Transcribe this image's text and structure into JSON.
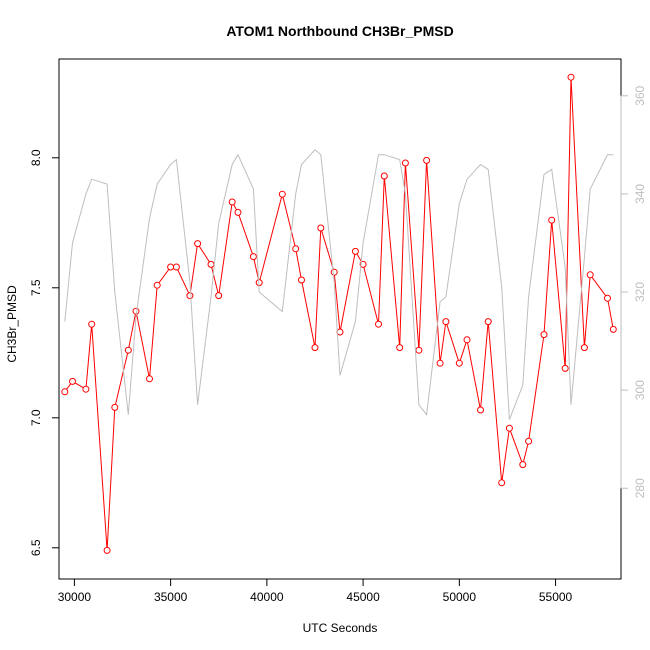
{
  "chart_data": {
    "type": "line",
    "title": "ATOM1 Northbound CH3Br_PMSD",
    "xlabel": "UTC Seconds",
    "ylabel": "CH3Br_PMSD",
    "xlim": [
      29200,
      58400
    ],
    "ylim": [
      6.38,
      8.38
    ],
    "y2lim": [
      261.5,
      367.5
    ],
    "x_ticks": [
      30000,
      35000,
      40000,
      45000,
      50000,
      55000
    ],
    "y_ticks": [
      6.5,
      7.0,
      7.5,
      8.0
    ],
    "y2_ticks": [
      280,
      300,
      320,
      340,
      360
    ],
    "x_tick_labels": [
      "30000",
      "35000",
      "40000",
      "45000",
      "50000",
      "55000"
    ],
    "y_tick_labels": [
      "6.5",
      "7.0",
      "7.5",
      "8.0"
    ],
    "y2_tick_labels": [
      "280",
      "300",
      "320",
      "340",
      "360"
    ],
    "grid": false,
    "colors": {
      "primary": "#ff0000",
      "secondary": "#bebebe",
      "frame": "#000000"
    },
    "series": [
      {
        "axis": "left",
        "style": "points-and-lines",
        "x": [
          29500,
          29900,
          30600,
          30900,
          31700,
          32100,
          32800,
          33200,
          33900,
          34300,
          35000,
          35300,
          36000,
          36400,
          37100,
          37500,
          38200,
          38500,
          39300,
          39600,
          40800,
          41500,
          41800,
          42500,
          42800,
          43500,
          43800,
          44600,
          45000,
          45800,
          46100,
          46900,
          47200,
          47900,
          48300,
          49000,
          49300,
          50000,
          50400,
          51100,
          51500,
          52200,
          52600,
          53300,
          53600,
          54400,
          54800,
          55500,
          55800,
          56500,
          56800,
          57700,
          58000
        ],
        "y": [
          7.1,
          7.14,
          7.11,
          7.36,
          6.49,
          7.04,
          7.26,
          7.41,
          7.15,
          7.51,
          7.58,
          7.58,
          7.47,
          7.67,
          7.59,
          7.47,
          7.83,
          7.79,
          7.62,
          7.52,
          7.86,
          7.65,
          7.53,
          7.27,
          7.73,
          7.56,
          7.33,
          7.64,
          7.59,
          7.36,
          7.93,
          7.27,
          7.98,
          7.26,
          7.99,
          7.21,
          7.37,
          7.21,
          7.3,
          7.03,
          7.37,
          6.75,
          6.96,
          6.82,
          6.91,
          7.32,
          7.76,
          7.19,
          8.31,
          7.27,
          7.55,
          7.46,
          7.34
        ]
      },
      {
        "axis": "right",
        "style": "line",
        "x": [
          29500,
          29900,
          30600,
          30900,
          31700,
          32100,
          32800,
          33200,
          33900,
          34300,
          35000,
          35300,
          36000,
          36400,
          37100,
          37500,
          38200,
          38500,
          39300,
          39600,
          40800,
          41500,
          41800,
          42500,
          42800,
          43500,
          43800,
          44600,
          45000,
          45800,
          46100,
          46900,
          47200,
          47900,
          48300,
          49000,
          49300,
          50000,
          50400,
          51100,
          51500,
          52200,
          52600,
          53300,
          53600,
          54400,
          54800,
          55500,
          55800,
          56500,
          56800,
          57700,
          58000
        ],
        "y": [
          314,
          330,
          340,
          343,
          342,
          320,
          295,
          315,
          335,
          342,
          346,
          347,
          322,
          297,
          319,
          334,
          346,
          348,
          341,
          320,
          316,
          340,
          346,
          349,
          348,
          322,
          303,
          314,
          330,
          348,
          348,
          347,
          340,
          297,
          295,
          318,
          319,
          338,
          343,
          346,
          345,
          321,
          294,
          301,
          319,
          344,
          345,
          325,
          297,
          327,
          341,
          348,
          348
        ]
      }
    ]
  }
}
